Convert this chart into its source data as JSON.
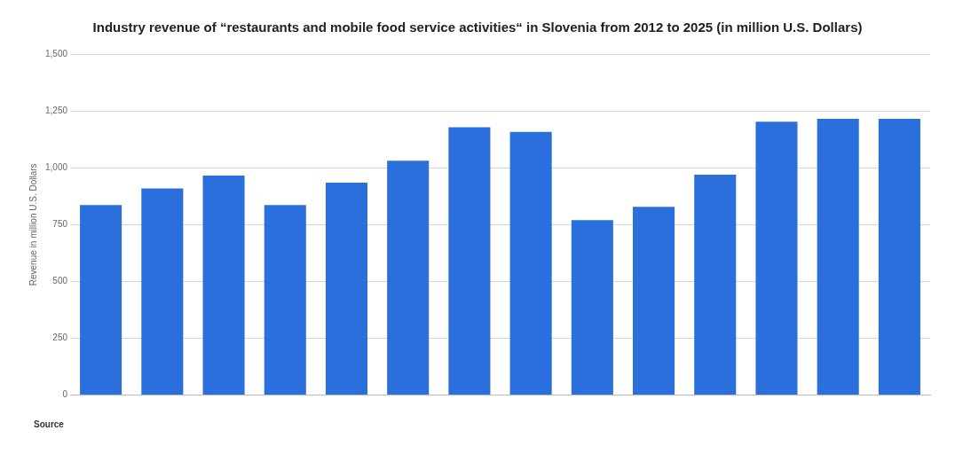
{
  "chart_data": {
    "type": "bar",
    "title": "Industry revenue of “restaurants and mobile food service activities“ in Slovenia from 2012 to 2025 (in million U.S. Dollars)",
    "ylabel": "Revenue in million U.S. Dollars",
    "categories": [
      null,
      null,
      null,
      null,
      null,
      null,
      null,
      null,
      null,
      null,
      null,
      null,
      null,
      null
    ],
    "values": [
      836,
      909,
      966,
      836,
      934,
      1031,
      1178,
      1158,
      770,
      828,
      970,
      1203,
      1215,
      1215
    ],
    "color": "#2a6fdb",
    "ylim": [
      0,
      1500
    ],
    "yticks": [
      0,
      250,
      500,
      750,
      {
        "value": 1000,
        "label": "1,000"
      },
      {
        "value": 1250,
        "label": "1,250"
      },
      {
        "value": 1500,
        "label": "1,500"
      }
    ],
    "grid": "y",
    "annotations": [
      "Source"
    ]
  }
}
